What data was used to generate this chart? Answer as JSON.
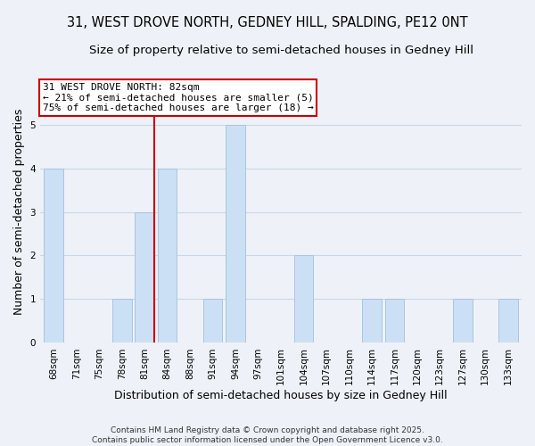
{
  "title": "31, WEST DROVE NORTH, GEDNEY HILL, SPALDING, PE12 0NT",
  "subtitle": "Size of property relative to semi-detached houses in Gedney Hill",
  "xlabel": "Distribution of semi-detached houses by size in Gedney Hill",
  "ylabel": "Number of semi-detached properties",
  "bin_labels": [
    "68sqm",
    "71sqm",
    "75sqm",
    "78sqm",
    "81sqm",
    "84sqm",
    "88sqm",
    "91sqm",
    "94sqm",
    "97sqm",
    "101sqm",
    "104sqm",
    "107sqm",
    "110sqm",
    "114sqm",
    "117sqm",
    "120sqm",
    "123sqm",
    "127sqm",
    "130sqm",
    "133sqm"
  ],
  "bar_heights": [
    4,
    0,
    0,
    1,
    3,
    4,
    0,
    1,
    5,
    0,
    0,
    2,
    0,
    0,
    1,
    1,
    0,
    0,
    1,
    0,
    1
  ],
  "bar_color": "#cce0f5",
  "bar_edge_color": "#aac4e0",
  "grid_color": "#c8d8e8",
  "background_color": "#eef2f8",
  "vline_x_index": 4,
  "vline_color": "#cc0000",
  "annotation_lines": [
    "31 WEST DROVE NORTH: 82sqm",
    "← 21% of semi-detached houses are smaller (5)",
    "75% of semi-detached houses are larger (18) →"
  ],
  "annotation_box_edge_color": "#cc0000",
  "footer_lines": [
    "Contains HM Land Registry data © Crown copyright and database right 2025.",
    "Contains public sector information licensed under the Open Government Licence v3.0."
  ],
  "ylim": [
    0,
    6
  ],
  "yticks": [
    0,
    1,
    2,
    3,
    4,
    5,
    6
  ],
  "title_fontsize": 10.5,
  "subtitle_fontsize": 9.5,
  "axis_label_fontsize": 9,
  "tick_fontsize": 7.5,
  "annotation_fontsize": 8,
  "footer_fontsize": 6.5
}
